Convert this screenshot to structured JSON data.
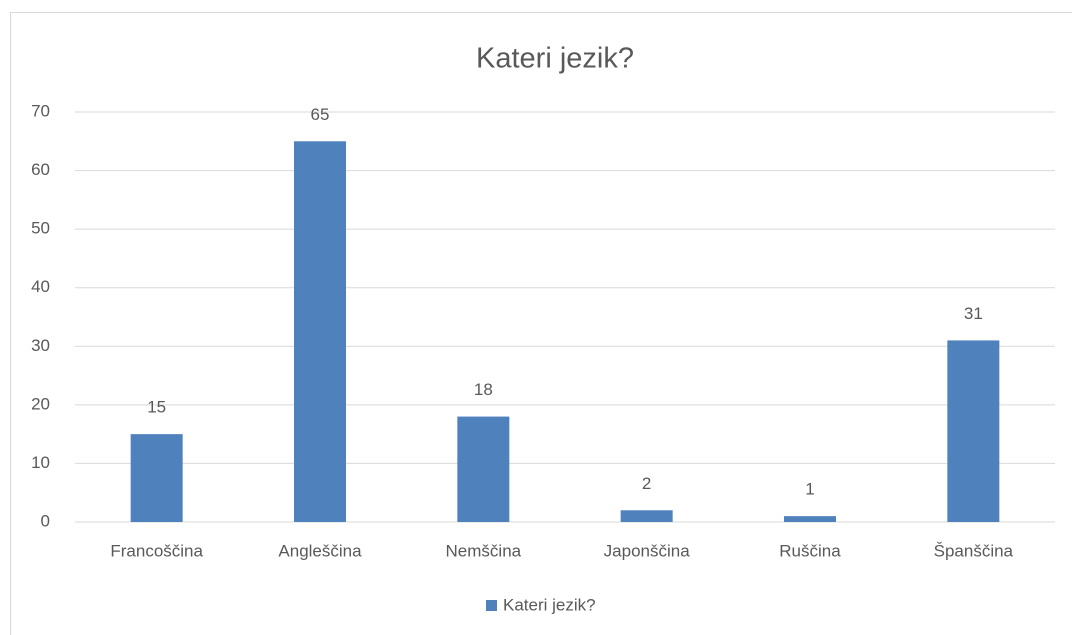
{
  "chart_data": {
    "type": "bar",
    "title": "Kateri jezik?",
    "categories": [
      "Francoščina",
      "Angleščina",
      "Nemščina",
      "Japonščina",
      "Ruščina",
      "Španščina"
    ],
    "series": [
      {
        "name": "Kateri jezik?",
        "color": "#4f81bd",
        "values": [
          15,
          65,
          18,
          2,
          1,
          31
        ]
      }
    ],
    "ylim": [
      0,
      70
    ],
    "yticks": [
      0,
      10,
      20,
      30,
      40,
      50,
      60,
      70
    ],
    "grid": true,
    "legend": "bottom"
  }
}
